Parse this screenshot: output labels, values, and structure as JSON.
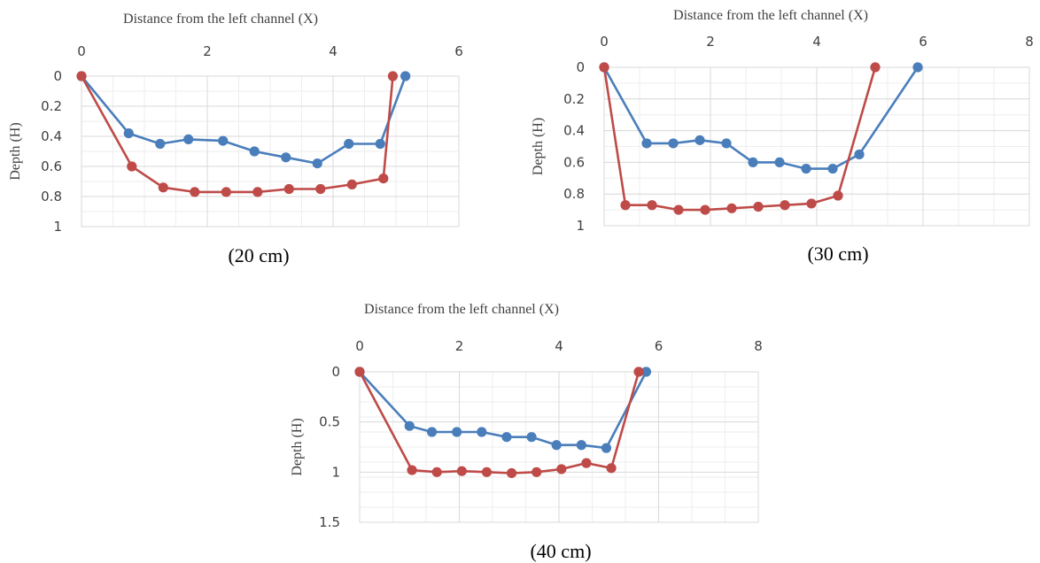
{
  "colors": {
    "series_1": "#4a7ebb",
    "series_2": "#be4b48"
  },
  "chart_data": [
    {
      "type": "scatter",
      "caption": "(20 cm)",
      "xlabel": "Distance from the left channel (X)",
      "ylabel": "Depth (H)",
      "xlim": [
        0,
        6
      ],
      "ylim": [
        0,
        1
      ],
      "y_reversed": true,
      "x_axis_position": "top",
      "xticks": [
        "0",
        "2",
        "4",
        "6"
      ],
      "yticks": [
        "0",
        "0.2",
        "0.4",
        "0.6",
        "0.8",
        "1"
      ],
      "grid": true,
      "series": [
        {
          "x": [
            0,
            0.75,
            1.25,
            1.7,
            2.25,
            2.75,
            3.25,
            3.75,
            4.25,
            4.75,
            5.15
          ],
          "y": [
            0,
            0.38,
            0.45,
            0.42,
            0.43,
            0.5,
            0.54,
            0.58,
            0.45,
            0.45,
            0
          ]
        },
        {
          "x": [
            0,
            0.8,
            1.3,
            1.8,
            2.3,
            2.8,
            3.3,
            3.8,
            4.3,
            4.8,
            4.95
          ],
          "y": [
            0,
            0.6,
            0.74,
            0.77,
            0.77,
            0.77,
            0.75,
            0.75,
            0.72,
            0.68,
            0
          ]
        }
      ]
    },
    {
      "type": "scatter",
      "caption": "(30 cm)",
      "xlabel": "Distance from the left channel (X)",
      "ylabel": "Depth (H)",
      "xlim": [
        0,
        8
      ],
      "ylim": [
        0,
        1
      ],
      "y_reversed": true,
      "x_axis_position": "top",
      "xticks": [
        "0",
        "2",
        "4",
        "6",
        "8"
      ],
      "yticks": [
        "0",
        "0.2",
        "0.4",
        "0.6",
        "0.8",
        "1"
      ],
      "grid": true,
      "series": [
        {
          "x": [
            0,
            0.8,
            1.3,
            1.8,
            2.3,
            2.8,
            3.3,
            3.8,
            4.3,
            4.8,
            5.9
          ],
          "y": [
            0,
            0.48,
            0.48,
            0.46,
            0.48,
            0.6,
            0.6,
            0.64,
            0.64,
            0.55,
            0
          ]
        },
        {
          "x": [
            0,
            0.4,
            0.9,
            1.4,
            1.9,
            2.4,
            2.9,
            3.4,
            3.9,
            4.4,
            5.1
          ],
          "y": [
            0,
            0.87,
            0.87,
            0.9,
            0.9,
            0.89,
            0.88,
            0.87,
            0.86,
            0.81,
            0
          ]
        }
      ]
    },
    {
      "type": "scatter",
      "caption": "(40 cm)",
      "xlabel": "Distance from the left channel (X)",
      "ylabel": "Depth (H)",
      "xlim": [
        0,
        8
      ],
      "ylim": [
        0,
        1.5
      ],
      "y_reversed": true,
      "x_axis_position": "top",
      "xticks": [
        "0",
        "2",
        "4",
        "6",
        "8"
      ],
      "yticks": [
        "0",
        "0.5",
        "1",
        "1.5"
      ],
      "grid": true,
      "series": [
        {
          "x": [
            0,
            1.0,
            1.45,
            1.95,
            2.45,
            2.95,
            3.45,
            3.95,
            4.45,
            4.95,
            5.75
          ],
          "y": [
            0,
            0.54,
            0.6,
            0.6,
            0.6,
            0.65,
            0.65,
            0.73,
            0.73,
            0.76,
            0
          ]
        },
        {
          "x": [
            0,
            1.05,
            1.55,
            2.05,
            2.55,
            3.05,
            3.55,
            4.05,
            4.55,
            5.05,
            5.6
          ],
          "y": [
            0,
            0.98,
            1.0,
            0.99,
            1.0,
            1.01,
            1.0,
            0.97,
            0.91,
            0.96,
            0
          ]
        }
      ]
    }
  ]
}
